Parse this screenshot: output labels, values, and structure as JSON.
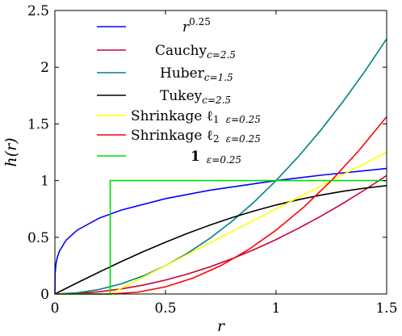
{
  "chart_data": {
    "type": "line",
    "title": "",
    "xlabel": "r",
    "ylabel": "h(r)",
    "xlim": [
      0,
      1.5
    ],
    "ylim": [
      0,
      2.5
    ],
    "xticks": [
      0,
      0.5,
      1,
      1.5
    ],
    "xtick_labels": [
      "0",
      "0.5",
      "1",
      "1.5"
    ],
    "yticks": [
      0,
      0.5,
      1,
      1.5,
      2,
      2.5
    ],
    "ytick_labels": [
      "0",
      "0.5",
      "1",
      "1.5",
      "2",
      "2.5"
    ],
    "grid": false,
    "legend_position": "top-left",
    "series": [
      {
        "id": "power",
        "legend_main": "r",
        "legend_sup": "0.25",
        "legend_sub": "",
        "color": "#0000ff",
        "x": [
          0,
          0.001,
          0.005,
          0.01,
          0.02,
          0.05,
          0.1,
          0.2,
          0.3,
          0.5,
          0.7,
          1.0,
          1.2,
          1.5
        ],
        "y": [
          0,
          0.178,
          0.266,
          0.316,
          0.376,
          0.473,
          0.562,
          0.669,
          0.74,
          0.841,
          0.915,
          1.0,
          1.047,
          1.107
        ]
      },
      {
        "id": "cauchy",
        "legend_main": "Cauchy",
        "legend_sup": "",
        "legend_sub": "c=2.5",
        "color": "#cc0033",
        "x": [
          0,
          0.1,
          0.2,
          0.3,
          0.4,
          0.5,
          0.6,
          0.7,
          0.8,
          0.9,
          1.0,
          1.1,
          1.2,
          1.3,
          1.4,
          1.5
        ],
        "y": [
          0,
          0.005,
          0.02,
          0.045,
          0.079,
          0.123,
          0.176,
          0.239,
          0.311,
          0.391,
          0.48,
          0.578,
          0.683,
          0.796,
          0.917,
          1.045
        ]
      },
      {
        "id": "huber",
        "legend_main": "Huber",
        "legend_sup": "",
        "legend_sub": "c=1.5",
        "color": "#008080",
        "x": [
          0,
          0.1,
          0.2,
          0.3,
          0.4,
          0.5,
          0.6,
          0.7,
          0.8,
          0.9,
          1.0,
          1.1,
          1.2,
          1.3,
          1.4,
          1.5
        ],
        "y": [
          0,
          0.01,
          0.04,
          0.09,
          0.16,
          0.25,
          0.36,
          0.49,
          0.64,
          0.81,
          1.0,
          1.21,
          1.44,
          1.69,
          1.96,
          2.25
        ]
      },
      {
        "id": "tukey",
        "legend_main": "Tukey",
        "legend_sup": "",
        "legend_sub": "c=2.5",
        "color": "#000000",
        "x": [
          0,
          0.1,
          0.2,
          0.3,
          0.4,
          0.5,
          0.6,
          0.7,
          0.8,
          0.9,
          1.0,
          1.1,
          1.2,
          1.3,
          1.4,
          1.5
        ],
        "y": [
          0,
          0.098,
          0.193,
          0.286,
          0.374,
          0.457,
          0.535,
          0.607,
          0.673,
          0.732,
          0.785,
          0.831,
          0.871,
          0.905,
          0.933,
          0.956
        ]
      },
      {
        "id": "shrink1",
        "legend_main": "Shrinkage ℓ",
        "legend_main_suffix": "1",
        "legend_sup": "",
        "legend_sub": "ε=0.25",
        "color": "#ffff00",
        "x": [
          0,
          0.25,
          0.5,
          0.75,
          1.0,
          1.25,
          1.5
        ],
        "y": [
          0,
          0,
          0.25,
          0.5,
          0.75,
          1.0,
          1.25
        ]
      },
      {
        "id": "shrink2",
        "legend_main": "Shrinkage ℓ",
        "legend_main_suffix": "2",
        "legend_sup": "",
        "legend_sub": "ε=0.25",
        "color": "#ff0000",
        "x": [
          0,
          0.25,
          0.375,
          0.5,
          0.625,
          0.75,
          0.875,
          1.0,
          1.125,
          1.25,
          1.375,
          1.5
        ],
        "y": [
          0,
          0,
          0.016,
          0.063,
          0.141,
          0.25,
          0.391,
          0.563,
          0.766,
          1.0,
          1.266,
          1.563
        ]
      },
      {
        "id": "indicator",
        "legend_main": "1",
        "legend_sup": "",
        "legend_sub": "ε=0.25",
        "color": "#00dd00",
        "x": [
          0,
          0.25,
          0.25,
          1.5
        ],
        "y": [
          0,
          0,
          1,
          1
        ]
      }
    ]
  }
}
